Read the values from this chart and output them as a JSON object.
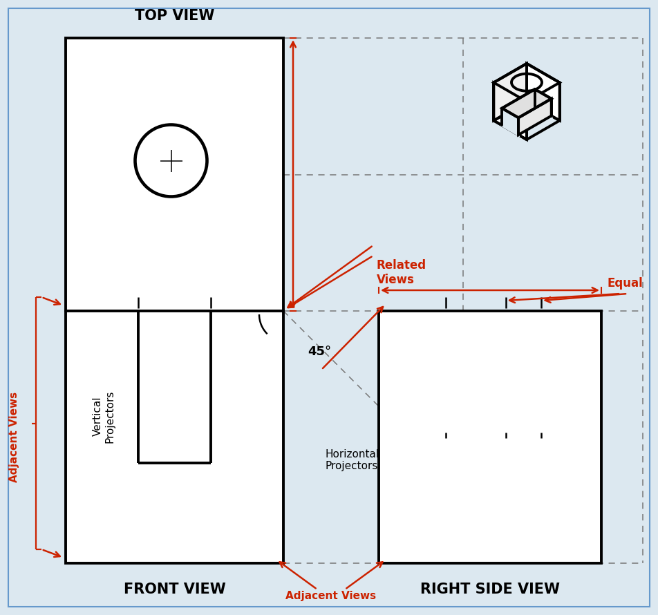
{
  "bg_color": "#dce8f0",
  "white": "#ffffff",
  "black": "#000000",
  "red": "#cc2200",
  "gray_dash": "#777777",
  "border_color": "#6699cc",
  "title_top": "TOP VIEW",
  "title_front": "FRONT VIEW",
  "title_right": "RIGHT SIDE VIEW",
  "lbl_vert": "Vertical\nProjectors",
  "lbl_horiz": "Horizontal\nProjectors",
  "lbl_related": "Related\nViews",
  "lbl_adj_left": "Adjacent Views",
  "lbl_adj_bot": "Adjacent Views",
  "lbl_equal": "Equal",
  "lbl_45": "45°",
  "TV_L": 95,
  "TV_R": 410,
  "TV_T": 835,
  "TV_B": 440,
  "FV_L": 95,
  "FV_R": 410,
  "FV_T": 440,
  "FV_B": 75,
  "RV_L": 548,
  "RV_R": 870,
  "RV_T": 440,
  "RV_B": 75
}
